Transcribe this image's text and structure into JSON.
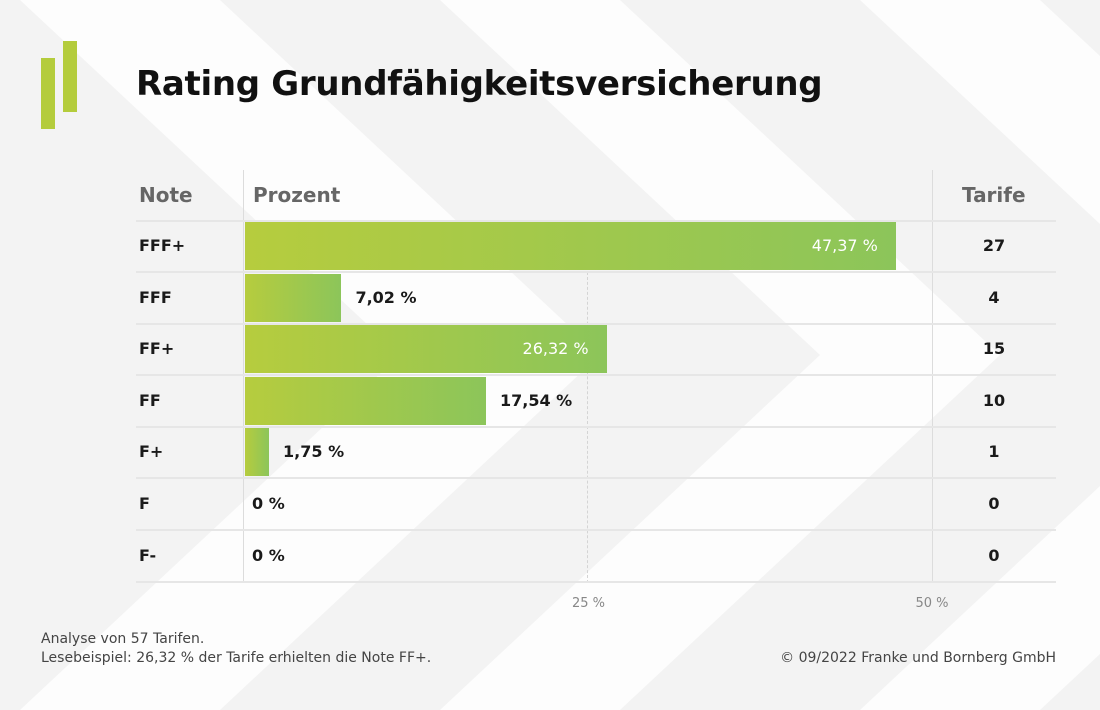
{
  "title": "Rating Grundfähigkeitsversicherung",
  "headers": {
    "note": "Note",
    "prozent": "Prozent",
    "tarife": "Tarife"
  },
  "chart_data": {
    "type": "bar",
    "orientation": "horizontal",
    "title": "Rating Grundfähigkeitsversicherung",
    "categories": [
      "FFF+",
      "FFF",
      "FF+",
      "FF",
      "F+",
      "F",
      "F-"
    ],
    "values": [
      47.37,
      7.02,
      26.32,
      17.54,
      1.75,
      0,
      0
    ],
    "value_labels": [
      "47,37 %",
      "7,02 %",
      "26,32 %",
      "17,54 %",
      "1,75 %",
      "0 %",
      "0 %"
    ],
    "counts": [
      27,
      4,
      15,
      10,
      1,
      0,
      0
    ],
    "xlim": [
      0,
      50
    ],
    "ticks": [
      {
        "value": 25,
        "label": "25 %"
      },
      {
        "value": 50,
        "label": "50 %"
      }
    ]
  },
  "footer": {
    "line1": "Analyse von 57 Tarifen.",
    "line2": "Lesebeispiel: 26,32 % der Tarife erhielten die Note FF+.",
    "copyright": "© 09/2022 Franke und Bornberg GmbH"
  },
  "colors": {
    "bar_start": "#b6cc3e",
    "bar_end": "#8cc55a",
    "logo": "#b4cc3c"
  }
}
